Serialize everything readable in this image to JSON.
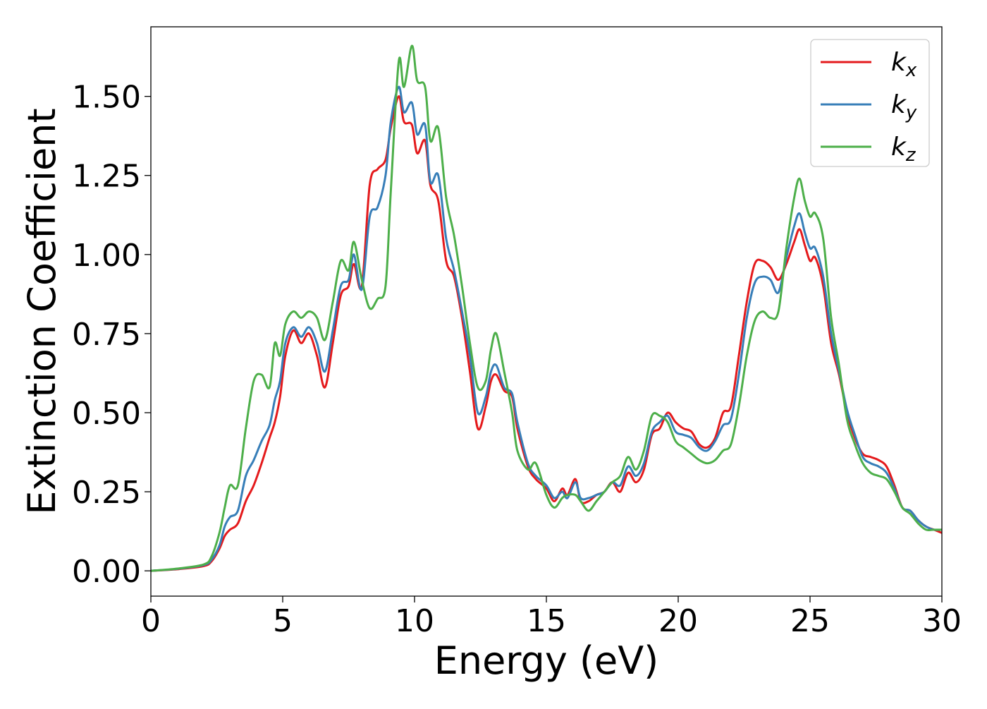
{
  "chart_data": {
    "type": "line",
    "title": "",
    "xlabel": "Energy (eV)",
    "ylabel": "Extinction Coefficient",
    "xlim": [
      0,
      30
    ],
    "ylim": [
      -0.08,
      1.72
    ],
    "grid": false,
    "legend_position": "top-right",
    "x_ticks": [
      0,
      5,
      10,
      15,
      20,
      25,
      30
    ],
    "x_tick_labels": [
      "0",
      "5",
      "10",
      "15",
      "20",
      "25",
      "30"
    ],
    "y_ticks": [
      0,
      0.25,
      0.5,
      0.75,
      1.0,
      1.25,
      1.5
    ],
    "y_tick_labels": [
      "0.00",
      "0.25",
      "0.50",
      "0.75",
      "1.00",
      "1.25",
      "1.50"
    ],
    "series": [
      {
        "name": "k",
        "subscript": "x",
        "color": "#e41a1c",
        "x": [
          0,
          1,
          2,
          2.3,
          2.6,
          2.8,
          3.0,
          3.3,
          3.6,
          3.9,
          4.2,
          4.5,
          4.7,
          4.9,
          5.1,
          5.4,
          5.7,
          6.0,
          6.3,
          6.6,
          6.9,
          7.2,
          7.5,
          7.7,
          8.0,
          8.3,
          8.6,
          8.9,
          9.1,
          9.4,
          9.6,
          9.9,
          10.1,
          10.4,
          10.6,
          10.9,
          11.2,
          11.5,
          11.8,
          12.1,
          12.4,
          12.7,
          12.9,
          13.1,
          13.4,
          13.7,
          13.9,
          14.3,
          14.6,
          15.0,
          15.3,
          15.6,
          15.8,
          16.1,
          16.3,
          16.6,
          16.9,
          17.2,
          17.5,
          17.8,
          18.1,
          18.4,
          18.7,
          19.0,
          19.3,
          19.6,
          19.9,
          20.2,
          20.5,
          20.8,
          21.1,
          21.4,
          21.7,
          22.0,
          22.3,
          22.6,
          22.9,
          23.2,
          23.5,
          23.8,
          24.1,
          24.4,
          24.6,
          24.8,
          25.0,
          25.2,
          25.5,
          25.8,
          26.1,
          26.4,
          26.7,
          27.0,
          27.3,
          27.6,
          27.9,
          28.2,
          28.5,
          28.8,
          29.1,
          29.4,
          29.7,
          30.0
        ],
        "y": [
          0.0,
          0.005,
          0.015,
          0.03,
          0.07,
          0.11,
          0.13,
          0.15,
          0.22,
          0.27,
          0.34,
          0.42,
          0.47,
          0.55,
          0.68,
          0.76,
          0.72,
          0.75,
          0.68,
          0.58,
          0.72,
          0.87,
          0.9,
          0.97,
          0.9,
          1.22,
          1.27,
          1.3,
          1.4,
          1.5,
          1.42,
          1.41,
          1.32,
          1.36,
          1.22,
          1.17,
          0.98,
          0.93,
          0.8,
          0.63,
          0.45,
          0.52,
          0.6,
          0.62,
          0.57,
          0.55,
          0.45,
          0.33,
          0.29,
          0.26,
          0.22,
          0.26,
          0.24,
          0.29,
          0.22,
          0.22,
          0.24,
          0.25,
          0.28,
          0.25,
          0.31,
          0.28,
          0.32,
          0.43,
          0.45,
          0.5,
          0.47,
          0.45,
          0.44,
          0.4,
          0.39,
          0.42,
          0.5,
          0.52,
          0.68,
          0.85,
          0.97,
          0.98,
          0.96,
          0.92,
          0.97,
          1.04,
          1.08,
          1.03,
          0.98,
          0.99,
          0.9,
          0.72,
          0.62,
          0.5,
          0.42,
          0.37,
          0.36,
          0.35,
          0.33,
          0.27,
          0.2,
          0.19,
          0.16,
          0.14,
          0.13,
          0.12
        ]
      },
      {
        "name": "k",
        "subscript": "y",
        "color": "#377eb8",
        "x": [
          0,
          1,
          2,
          2.3,
          2.6,
          2.8,
          3.0,
          3.3,
          3.6,
          3.9,
          4.2,
          4.5,
          4.7,
          4.9,
          5.1,
          5.4,
          5.7,
          6.0,
          6.3,
          6.6,
          6.9,
          7.2,
          7.5,
          7.7,
          8.0,
          8.3,
          8.6,
          8.9,
          9.1,
          9.4,
          9.6,
          9.9,
          10.1,
          10.4,
          10.6,
          10.9,
          11.2,
          11.5,
          11.8,
          12.1,
          12.4,
          12.7,
          12.9,
          13.1,
          13.4,
          13.7,
          13.9,
          14.3,
          14.6,
          15.0,
          15.3,
          15.6,
          15.8,
          16.1,
          16.3,
          16.6,
          16.9,
          17.2,
          17.5,
          17.8,
          18.1,
          18.4,
          18.7,
          19.0,
          19.3,
          19.6,
          19.9,
          20.2,
          20.5,
          20.8,
          21.1,
          21.4,
          21.7,
          22.0,
          22.3,
          22.6,
          22.9,
          23.2,
          23.5,
          23.8,
          24.1,
          24.4,
          24.6,
          24.8,
          25.0,
          25.2,
          25.5,
          25.8,
          26.1,
          26.4,
          26.7,
          27.0,
          27.3,
          27.6,
          27.9,
          28.2,
          28.5,
          28.8,
          29.1,
          29.4,
          29.7,
          30.0
        ],
        "y": [
          0.0,
          0.006,
          0.018,
          0.035,
          0.08,
          0.14,
          0.17,
          0.19,
          0.3,
          0.35,
          0.41,
          0.46,
          0.54,
          0.6,
          0.72,
          0.77,
          0.74,
          0.77,
          0.72,
          0.63,
          0.76,
          0.9,
          0.92,
          1.0,
          0.89,
          1.12,
          1.15,
          1.25,
          1.42,
          1.53,
          1.45,
          1.48,
          1.38,
          1.41,
          1.23,
          1.25,
          1.05,
          0.95,
          0.82,
          0.68,
          0.5,
          0.55,
          0.63,
          0.65,
          0.58,
          0.56,
          0.47,
          0.34,
          0.3,
          0.27,
          0.23,
          0.25,
          0.23,
          0.28,
          0.23,
          0.23,
          0.24,
          0.25,
          0.28,
          0.27,
          0.33,
          0.3,
          0.34,
          0.44,
          0.47,
          0.49,
          0.44,
          0.43,
          0.42,
          0.39,
          0.38,
          0.41,
          0.46,
          0.48,
          0.62,
          0.8,
          0.91,
          0.93,
          0.92,
          0.88,
          0.99,
          1.09,
          1.13,
          1.07,
          1.02,
          1.02,
          0.93,
          0.75,
          0.63,
          0.51,
          0.43,
          0.36,
          0.34,
          0.33,
          0.31,
          0.26,
          0.2,
          0.19,
          0.16,
          0.14,
          0.13,
          0.13
        ]
      },
      {
        "name": "k",
        "subscript": "z",
        "color": "#4daf4a",
        "x": [
          0,
          1,
          2,
          2.3,
          2.6,
          2.8,
          3.0,
          3.3,
          3.6,
          3.9,
          4.2,
          4.5,
          4.7,
          4.9,
          5.1,
          5.4,
          5.7,
          6.0,
          6.3,
          6.6,
          6.9,
          7.2,
          7.5,
          7.7,
          8.0,
          8.3,
          8.6,
          8.9,
          9.1,
          9.4,
          9.6,
          9.9,
          10.1,
          10.4,
          10.6,
          10.9,
          11.2,
          11.5,
          11.8,
          12.1,
          12.4,
          12.7,
          12.9,
          13.1,
          13.4,
          13.7,
          13.9,
          14.3,
          14.6,
          15.0,
          15.3,
          15.6,
          15.8,
          16.1,
          16.3,
          16.6,
          16.9,
          17.2,
          17.5,
          17.8,
          18.1,
          18.4,
          18.7,
          19.0,
          19.3,
          19.6,
          19.9,
          20.2,
          20.5,
          20.8,
          21.1,
          21.4,
          21.7,
          22.0,
          22.3,
          22.6,
          22.9,
          23.2,
          23.5,
          23.8,
          24.1,
          24.4,
          24.6,
          24.8,
          25.0,
          25.2,
          25.5,
          25.8,
          26.1,
          26.4,
          26.7,
          27.0,
          27.3,
          27.6,
          27.9,
          28.2,
          28.5,
          28.8,
          29.1,
          29.4,
          29.7,
          30.0
        ],
        "y": [
          0.0,
          0.007,
          0.02,
          0.045,
          0.12,
          0.2,
          0.27,
          0.27,
          0.45,
          0.6,
          0.62,
          0.58,
          0.72,
          0.68,
          0.78,
          0.82,
          0.8,
          0.82,
          0.8,
          0.73,
          0.85,
          0.98,
          0.95,
          1.04,
          0.92,
          0.83,
          0.86,
          0.9,
          1.2,
          1.61,
          1.53,
          1.66,
          1.55,
          1.53,
          1.36,
          1.4,
          1.18,
          1.06,
          0.9,
          0.72,
          0.58,
          0.6,
          0.7,
          0.75,
          0.63,
          0.5,
          0.38,
          0.32,
          0.34,
          0.24,
          0.2,
          0.23,
          0.24,
          0.24,
          0.22,
          0.19,
          0.22,
          0.25,
          0.28,
          0.3,
          0.36,
          0.32,
          0.38,
          0.49,
          0.49,
          0.47,
          0.41,
          0.39,
          0.37,
          0.35,
          0.34,
          0.35,
          0.38,
          0.4,
          0.52,
          0.68,
          0.79,
          0.82,
          0.8,
          0.82,
          1.02,
          1.18,
          1.24,
          1.17,
          1.12,
          1.13,
          1.05,
          0.8,
          0.65,
          0.48,
          0.4,
          0.34,
          0.31,
          0.3,
          0.29,
          0.25,
          0.2,
          0.18,
          0.15,
          0.13,
          0.13,
          0.13
        ]
      }
    ]
  }
}
